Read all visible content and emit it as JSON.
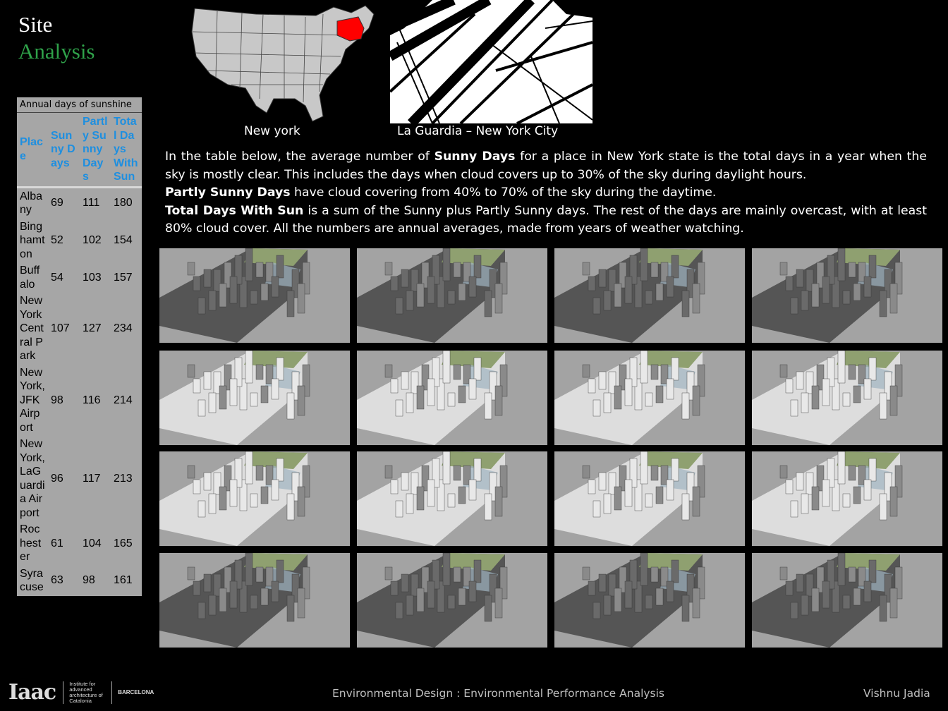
{
  "title": {
    "line1": "Site",
    "line2": "Analysis"
  },
  "table": {
    "caption": "Annual days of sunshine",
    "headers": [
      "Place",
      "Sunny Days",
      "Partly Sunny Days",
      "Total Days With Sun"
    ],
    "rows": [
      [
        "Albany",
        "69",
        "111",
        "180"
      ],
      [
        "Binghamton",
        "52",
        "102",
        "154"
      ],
      [
        "Buffalo",
        "54",
        "103",
        "157"
      ],
      [
        "New York Central Park",
        "107",
        "127",
        "234"
      ],
      [
        "New York, JFK Airport",
        "98",
        "116",
        "214"
      ],
      [
        "New York, LaGuardia Airport",
        "96",
        "117",
        "213"
      ],
      [
        "Rochester",
        "61",
        "104",
        "165"
      ],
      [
        "Syracuse",
        "63",
        "98",
        "161"
      ]
    ]
  },
  "maps": {
    "us_label": "New york",
    "nyc_label": "La Guardia – New York City",
    "highlight_color": "#ff0000"
  },
  "description": {
    "p1_a": "In the table below, the average number of ",
    "p1_b": "Sunny Days",
    "p1_c": " for a place in New York state is the total days in a year when the sky is mostly clear. This includes the days when cloud covers up to 30% of the sky during daylight hours.",
    "p2_b": "Partly Sunny Days",
    "p2_c": " have cloud covering from 40% to 70% of the sky during the daytime.",
    "p3_b": "Total Days With Sun",
    "p3_c": " is a sum of the Sunny plus Partly Sunny days. The rest of the days are mainly overcast, with at least 80% cloud cover. All the numbers are annual averages, made from years of weather watching."
  },
  "footer": {
    "logo": "Iaac",
    "institute": "Institute for advanced architecture of Catalonia",
    "city": "BARCELONA",
    "course": "Environmental Design : Environmental Performance Analysis",
    "author": "Vishnu Jadia"
  }
}
